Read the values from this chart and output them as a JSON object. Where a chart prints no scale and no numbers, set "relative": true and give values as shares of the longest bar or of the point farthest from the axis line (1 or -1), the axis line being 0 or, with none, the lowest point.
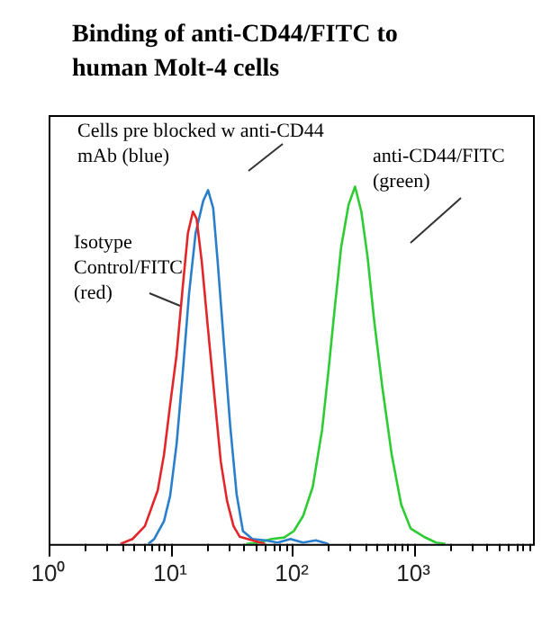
{
  "chart_data": {
    "type": "line",
    "title": "Binding of anti-CD44/FITC to human Molt-4 cells",
    "relative": true,
    "log": "x",
    "grid": false,
    "legend": false,
    "tick_labels": "x",
    "marker": "none",
    "line_style": "solid",
    "xlim": [
      1,
      10000
    ],
    "xticks": [
      {
        "value": 1,
        "label": "10⁰"
      },
      {
        "value": 2,
        "label": null
      },
      {
        "value": 3,
        "label": null
      },
      {
        "value": 4,
        "label": null
      },
      {
        "value": 5,
        "label": null
      },
      {
        "value": 6,
        "label": null
      },
      {
        "value": 7,
        "label": null
      },
      {
        "value": 8,
        "label": null
      },
      {
        "value": 9,
        "label": null
      },
      {
        "value": 10,
        "label": "10¹"
      },
      {
        "value": 20,
        "label": null
      },
      {
        "value": 30,
        "label": null
      },
      {
        "value": 40,
        "label": null
      },
      {
        "value": 50,
        "label": null
      },
      {
        "value": 60,
        "label": null
      },
      {
        "value": 70,
        "label": null
      },
      {
        "value": 80,
        "label": null
      },
      {
        "value": 90,
        "label": null
      },
      {
        "value": 100,
        "label": "10²"
      },
      {
        "value": 200,
        "label": null
      },
      {
        "value": 300,
        "label": null
      },
      {
        "value": 400,
        "label": null
      },
      {
        "value": 500,
        "label": null
      },
      {
        "value": 600,
        "label": null
      },
      {
        "value": 700,
        "label": null
      },
      {
        "value": 800,
        "label": null
      },
      {
        "value": 900,
        "label": null
      },
      {
        "value": 1000,
        "label": "10³"
      },
      {
        "value": 2000,
        "label": null
      },
      {
        "value": 3000,
        "label": null
      },
      {
        "value": 4000,
        "label": null
      },
      {
        "value": 5000,
        "label": null
      },
      {
        "value": 6000,
        "label": null
      },
      {
        "value": 7000,
        "label": null
      },
      {
        "value": 8000,
        "label": null
      },
      {
        "value": 9000,
        "label": null
      }
    ],
    "annotations": [
      "Cells pre blocked w anti-CD44 mAb (blue)",
      "anti-CD44/FITC (green)",
      "Isotype Control/FITC (red)"
    ],
    "series": [
      {
        "color": "#e2262a",
        "x": [
          3.9,
          4.9,
          6.2,
          7.9,
          8.9,
          10,
          11.3,
          12.7,
          14,
          15.4,
          16.5,
          18.2,
          20.5,
          23.2,
          26.1,
          29.4,
          33.2,
          37.4,
          47.5,
          60.4
        ],
        "values": [
          0,
          0.014,
          0.05,
          0.15,
          0.25,
          0.39,
          0.53,
          0.72,
          0.87,
          0.93,
          0.91,
          0.79,
          0.6,
          0.41,
          0.23,
          0.12,
          0.05,
          0.02,
          0.01,
          0
        ]
      },
      {
        "color": "#2a7fcc",
        "x": [
          6.6,
          7.4,
          8.9,
          10,
          11.3,
          12.7,
          14.3,
          16.2,
          18.7,
          20.5,
          22.6,
          24.6,
          27.7,
          31.2,
          35.2,
          39.7,
          47.5,
          60.4,
          76.8,
          97.7,
          124,
          158,
          200
        ],
        "values": [
          0,
          0.014,
          0.064,
          0.135,
          0.28,
          0.48,
          0.7,
          0.87,
          0.96,
          0.99,
          0.94,
          0.79,
          0.56,
          0.33,
          0.14,
          0.036,
          0.014,
          0.01,
          0.004,
          0.014,
          0.004,
          0.01,
          0
        ]
      },
      {
        "color": "#2ecc33",
        "x": [
          42.2,
          53.6,
          68.1,
          86.6,
          104,
          124,
          149,
          178,
          200,
          226,
          255,
          294,
          332,
          374,
          422,
          475,
          556,
          665,
          796,
          953,
          1211,
          1540,
          1845
        ],
        "values": [
          0,
          0.004,
          0.014,
          0.018,
          0.036,
          0.078,
          0.16,
          0.32,
          0.48,
          0.66,
          0.83,
          0.95,
          1,
          0.93,
          0.8,
          0.63,
          0.44,
          0.25,
          0.11,
          0.043,
          0.021,
          0.004,
          0
        ]
      }
    ]
  }
}
